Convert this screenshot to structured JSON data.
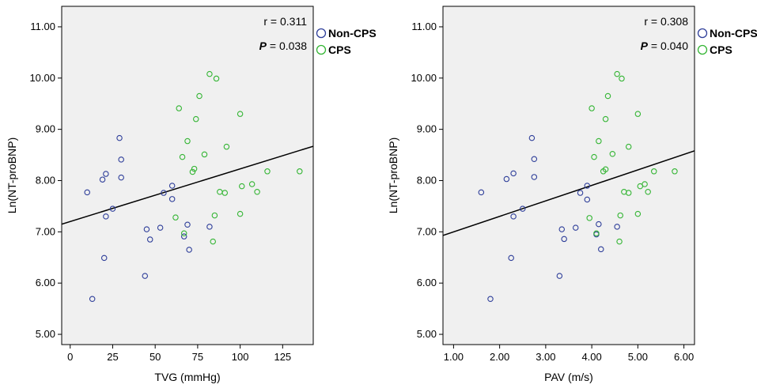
{
  "colors": {
    "non_cps": "#2f3f9a",
    "cps": "#34b534",
    "plot_bg": "#f0f0f0",
    "line": "#000000"
  },
  "chart_data": [
    {
      "type": "scatter",
      "title": "",
      "xlabel": "TVG (mmHg)",
      "ylabel": "Ln(NT-proBNP)",
      "xlim": [
        -5,
        143
      ],
      "ylim": [
        4.8,
        11.4
      ],
      "xticks": [
        0,
        25,
        50,
        75,
        100,
        125
      ],
      "xtick_labels": [
        "0",
        "25",
        "50",
        "75",
        "100",
        "125"
      ],
      "yticks": [
        5,
        6,
        7,
        8,
        9,
        10,
        11
      ],
      "ytick_labels": [
        "5.00",
        "6.00",
        "7.00",
        "8.00",
        "9.00",
        "10.00",
        "11.00"
      ],
      "stats": {
        "r": "r = 0.311",
        "p_label": "P",
        "p_value": " = 0.038"
      },
      "legend": [
        "Non-CPS",
        "CPS"
      ],
      "fit_line": {
        "x": [
          -5,
          143
        ],
        "y": [
          7.15,
          8.67
        ]
      },
      "series": [
        {
          "name": "Non-CPS",
          "points": [
            [
              10,
              7.77
            ],
            [
              13,
              5.69
            ],
            [
              20,
              6.49
            ],
            [
              19,
              8.02
            ],
            [
              21,
              8.13
            ],
            [
              21,
              7.3
            ],
            [
              25,
              7.45
            ],
            [
              29,
              8.83
            ],
            [
              30,
              8.41
            ],
            [
              30,
              8.06
            ],
            [
              44,
              6.14
            ],
            [
              45,
              7.05
            ],
            [
              47,
              6.85
            ],
            [
              53,
              7.08
            ],
            [
              55,
              7.76
            ],
            [
              60,
              7.64
            ],
            [
              60,
              7.9
            ],
            [
              67,
              6.91
            ],
            [
              69,
              7.14
            ],
            [
              70,
              6.65
            ],
            [
              82,
              7.1
            ]
          ]
        },
        {
          "name": "CPS",
          "points": [
            [
              62,
              7.28
            ],
            [
              64,
              9.41
            ],
            [
              66,
              8.46
            ],
            [
              67,
              6.97
            ],
            [
              69,
              8.77
            ],
            [
              72,
              8.17
            ],
            [
              73,
              8.23
            ],
            [
              74,
              9.2
            ],
            [
              76,
              9.65
            ],
            [
              79,
              8.51
            ],
            [
              82,
              10.08
            ],
            [
              84,
              6.81
            ],
            [
              85,
              7.32
            ],
            [
              86,
              9.99
            ],
            [
              88,
              7.78
            ],
            [
              91,
              7.76
            ],
            [
              92,
              8.66
            ],
            [
              100,
              9.3
            ],
            [
              100,
              7.35
            ],
            [
              101,
              7.89
            ],
            [
              107,
              7.93
            ],
            [
              110,
              7.78
            ],
            [
              116,
              8.18
            ],
            [
              135,
              8.18
            ]
          ]
        }
      ]
    },
    {
      "type": "scatter",
      "title": "",
      "xlabel": "PAV (m/s)",
      "ylabel": "Ln(NT-proBNP)",
      "xlim": [
        0.77,
        6.23
      ],
      "ylim": [
        4.8,
        11.4
      ],
      "xticks": [
        1,
        2,
        3,
        4,
        5,
        6
      ],
      "xtick_labels": [
        "1.00",
        "2.00",
        "3.00",
        "4.00",
        "5.00",
        "6.00"
      ],
      "yticks": [
        5,
        6,
        7,
        8,
        9,
        10,
        11
      ],
      "ytick_labels": [
        "5.00",
        "6.00",
        "7.00",
        "8.00",
        "9.00",
        "10.00",
        "11.00"
      ],
      "stats": {
        "r": "r = 0.308",
        "p_label": "P",
        "p_value": " = 0.040"
      },
      "legend": [
        "Non-CPS",
        "CPS"
      ],
      "fit_line": {
        "x": [
          0.77,
          6.23
        ],
        "y": [
          6.93,
          8.58
        ]
      },
      "series": [
        {
          "name": "Non-CPS",
          "points": [
            [
              1.6,
              7.77
            ],
            [
              1.8,
              5.69
            ],
            [
              2.15,
              8.03
            ],
            [
              2.25,
              6.49
            ],
            [
              2.3,
              8.14
            ],
            [
              2.3,
              7.3
            ],
            [
              2.5,
              7.45
            ],
            [
              2.7,
              8.83
            ],
            [
              2.75,
              8.42
            ],
            [
              2.75,
              8.07
            ],
            [
              3.3,
              6.14
            ],
            [
              3.35,
              7.05
            ],
            [
              3.4,
              6.86
            ],
            [
              3.65,
              7.08
            ],
            [
              3.75,
              7.76
            ],
            [
              3.9,
              7.63
            ],
            [
              3.9,
              7.9
            ],
            [
              4.1,
              6.95
            ],
            [
              4.15,
              7.15
            ],
            [
              4.2,
              6.66
            ],
            [
              4.55,
              7.1
            ]
          ]
        },
        {
          "name": "CPS",
          "points": [
            [
              3.95,
              7.27
            ],
            [
              4.0,
              9.41
            ],
            [
              4.05,
              8.46
            ],
            [
              4.1,
              6.97
            ],
            [
              4.15,
              8.77
            ],
            [
              4.25,
              8.18
            ],
            [
              4.3,
              8.22
            ],
            [
              4.3,
              9.2
            ],
            [
              4.35,
              9.65
            ],
            [
              4.45,
              8.52
            ],
            [
              4.55,
              10.08
            ],
            [
              4.6,
              6.81
            ],
            [
              4.62,
              7.32
            ],
            [
              4.65,
              9.99
            ],
            [
              4.7,
              7.78
            ],
            [
              4.8,
              7.76
            ],
            [
              4.8,
              8.66
            ],
            [
              5.0,
              9.3
            ],
            [
              5.0,
              7.35
            ],
            [
              5.05,
              7.89
            ],
            [
              5.15,
              7.93
            ],
            [
              5.22,
              7.78
            ],
            [
              5.35,
              8.18
            ],
            [
              5.8,
              8.18
            ]
          ]
        }
      ]
    }
  ]
}
